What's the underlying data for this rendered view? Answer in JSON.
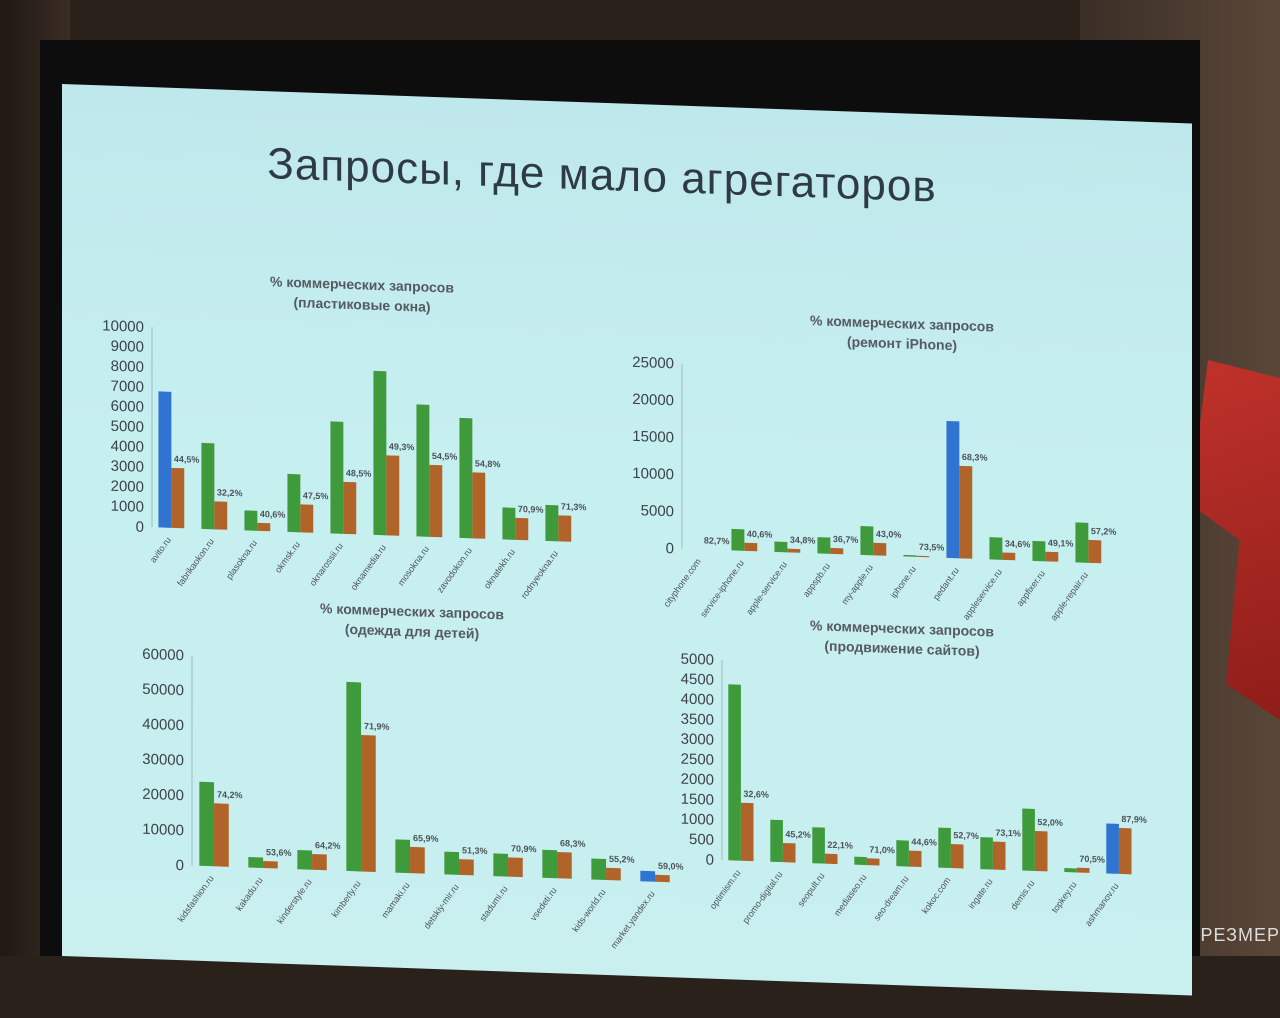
{
  "slide": {
    "title": "Запросы, где мало агрегаторов"
  },
  "brand_partial": "РЕЗМЕР",
  "colors": {
    "green": "#3f9a3c",
    "orange": "#b0642a",
    "blue": "#2f74d0",
    "axis_text": "#3c4248",
    "label_text": "#4b5258"
  },
  "chart_data": [
    {
      "type": "bar",
      "title": "% коммерческих запросов",
      "subtitle": "(пластиковые окна)",
      "ylim": [
        0,
        10000
      ],
      "yticks": [
        0,
        1000,
        2000,
        3000,
        4000,
        5000,
        6000,
        7000,
        8000,
        9000,
        10000
      ],
      "categories": [
        "avito.ru",
        "fabrikaokon.ru",
        "plasokna.ru",
        "okmsk.ru",
        "oknarossii.ru",
        "oknamedia.ru",
        "mosokna.ru",
        "zavodokon.ru",
        "oknatekh.ru",
        "rodnyeokna.ru"
      ],
      "series": [
        {
          "color": "green",
          "values": [
            0,
            4300,
            1000,
            2900,
            5600,
            8200,
            6600,
            6000,
            1600,
            1800
          ]
        },
        {
          "color": "orange",
          "values": [
            3000,
            1400,
            400,
            1400,
            2600,
            4000,
            3600,
            3300,
            1100,
            1300
          ]
        }
      ],
      "highlight": [
        {
          "index": 0,
          "series": 0,
          "color": "blue",
          "value": 6800
        }
      ],
      "labels": [
        "44,5%",
        "32,2%",
        "40,6%",
        "47,5%",
        "48,5%",
        "49,3%",
        "54,5%",
        "54,8%",
        "70,9%",
        "71,3%"
      ]
    },
    {
      "type": "bar",
      "title": "% коммерческих запросов",
      "subtitle": "(ремонт iPhone)",
      "ylim": [
        0,
        25000
      ],
      "yticks": [
        0,
        5000,
        10000,
        15000,
        20000,
        25000
      ],
      "categories": [
        "cityphone.com",
        "service-iphone.ru",
        "apple-service.ru",
        "appspb.ru",
        "my-apple.ru",
        "iphone.ru",
        "pedant.ru",
        "appleservice.ru",
        "appfixer.ru",
        "apple-repair.ru"
      ],
      "series": [
        {
          "color": "green",
          "values": [
            0,
            2900,
            1400,
            2200,
            3900,
            200,
            0,
            3000,
            2700,
            5400
          ]
        },
        {
          "color": "orange",
          "values": [
            0,
            1100,
            500,
            800,
            1700,
            150,
            12500,
            1000,
            1300,
            3100
          ]
        }
      ],
      "highlight": [
        {
          "index": 6,
          "series": 0,
          "color": "blue",
          "value": 18500
        }
      ],
      "labels": [
        "82,7%",
        "40,6%",
        "34,8%",
        "36,7%",
        "43,0%",
        "73,5%",
        "68,3%",
        "34,6%",
        "49,1%",
        "57,2%"
      ]
    },
    {
      "type": "bar",
      "title": "% коммерческих запросов",
      "subtitle": "(одежда для детей)",
      "ylim": [
        0,
        60000
      ],
      "yticks": [
        0,
        10000,
        20000,
        30000,
        40000,
        50000,
        60000
      ],
      "categories": [
        "kidsfashion.ru",
        "kakadu.ru",
        "kinderstyle.ru",
        "kimberly.ru",
        "mamaki.ru",
        "detskiy-mir.ru",
        "stadumi.ru",
        "vsedeti.ru",
        "kids-world.ru",
        "market.yandex.ru"
      ],
      "series": [
        {
          "color": "green",
          "values": [
            24000,
            3000,
            5500,
            54000,
            9500,
            6500,
            6500,
            8000,
            6000,
            1000
          ]
        },
        {
          "color": "orange",
          "values": [
            18000,
            2000,
            4500,
            39000,
            7500,
            4500,
            5500,
            7500,
            3500,
            2000
          ]
        }
      ],
      "highlight": [
        {
          "index": 9,
          "series": 0,
          "color": "blue",
          "value": 3000
        }
      ],
      "labels": [
        "74,2%",
        "53,6%",
        "64,2%",
        "71,9%",
        "65,9%",
        "51,3%",
        "70,9%",
        "68,3%",
        "55,2%",
        "59,0%"
      ]
    },
    {
      "type": "bar",
      "title": "% коммерческих запросов",
      "subtitle": "(продвижение сайтов)",
      "ylim": [
        0,
        5000
      ],
      "yticks": [
        0,
        500,
        1000,
        1500,
        2000,
        2500,
        3000,
        3500,
        4000,
        4500,
        5000
      ],
      "categories": [
        "optimism.ru",
        "promo-digital.ru",
        "seopult.ru",
        "mediaseo.ru",
        "seo-dream.ru",
        "kokoc.com",
        "ingate.ru",
        "demis.ru",
        "topkey.ru",
        "ashmanov.ru"
      ],
      "series": [
        {
          "color": "green",
          "values": [
            4400,
            1050,
            900,
            200,
            650,
            1000,
            800,
            1550,
            100,
            0
          ]
        },
        {
          "color": "orange",
          "values": [
            1450,
            480,
            250,
            170,
            400,
            600,
            700,
            1000,
            120,
            1150
          ]
        }
      ],
      "highlight": [
        {
          "index": 9,
          "series": 0,
          "color": "blue",
          "value": 1250
        }
      ],
      "labels": [
        "32,6%",
        "45,2%",
        "22,1%",
        "71,0%",
        "44,6%",
        "52,7%",
        "73,1%",
        "52,0%",
        "70,5%",
        "87,9%"
      ]
    }
  ]
}
